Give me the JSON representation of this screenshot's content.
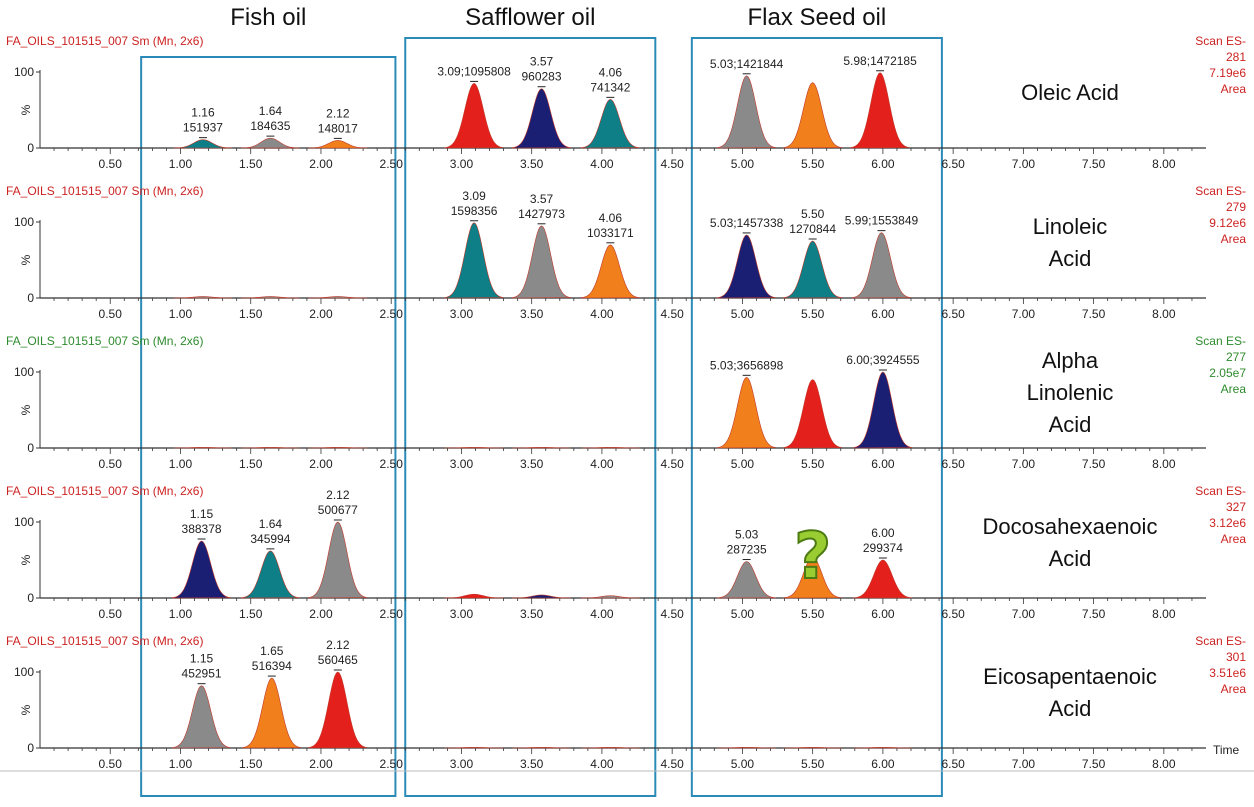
{
  "colors": {
    "red": "#e3201b",
    "navy": "#1b1f73",
    "teal": "#0e7f86",
    "gray": "#8a8a8a",
    "orange": "#f07f1c",
    "box": "#2b8bb8",
    "header_red": "#cc2222",
    "header_green": "#2e8b2e",
    "question_mark": "#9acd32"
  },
  "chart_data": {
    "type": "area",
    "oil_groups": [
      {
        "name": "Fish oil",
        "x_range": [
          0.72,
          2.53
        ]
      },
      {
        "name": "Safflower oil",
        "x_range": [
          2.6,
          4.38
        ]
      },
      {
        "name": "Flax Seed oil",
        "x_range": [
          4.64,
          6.42
        ]
      }
    ],
    "x_axis": {
      "label": "Time",
      "range": [
        0.0,
        8.3
      ],
      "ticks": [
        "0.50",
        "1.00",
        "1.50",
        "2.00",
        "2.50",
        "3.00",
        "3.50",
        "4.00",
        "4.50",
        "5.00",
        "5.50",
        "6.00",
        "6.50",
        "7.00",
        "7.50",
        "8.00"
      ]
    },
    "y_axis": {
      "label": "%",
      "range": [
        0,
        100
      ],
      "ticks": [
        "0",
        "100"
      ]
    },
    "panels": [
      {
        "header": "FA_OILS_101515_007 Sm (Mn, 2x6)",
        "header_color": "red",
        "compound": [
          "Oleic Acid"
        ],
        "scan": [
          "Scan ES-",
          "281",
          "7.19e6",
          "Area"
        ],
        "scan_color": "red",
        "peaks": [
          {
            "rt": 1.16,
            "height": 11,
            "color": "teal",
            "label": [
              "1.16",
              "151937"
            ]
          },
          {
            "rt": 1.64,
            "height": 13,
            "color": "gray",
            "label": [
              "1.64",
              "184635"
            ]
          },
          {
            "rt": 2.12,
            "height": 10,
            "color": "orange",
            "label": [
              "2.12",
              "148017"
            ]
          },
          {
            "rt": 3.09,
            "height": 85,
            "color": "red",
            "label": [
              "3.09;1095808"
            ]
          },
          {
            "rt": 3.57,
            "height": 78,
            "color": "navy",
            "label": [
              "3.57",
              "960283"
            ]
          },
          {
            "rt": 4.06,
            "height": 64,
            "color": "teal",
            "label": [
              "4.06",
              "741342"
            ]
          },
          {
            "rt": 5.03,
            "height": 95,
            "color": "gray",
            "label": [
              "5.03;1421844"
            ]
          },
          {
            "rt": 5.5,
            "height": 86,
            "color": "orange",
            "label": []
          },
          {
            "rt": 5.98,
            "height": 99,
            "color": "red",
            "label": [
              "5.98;1472185"
            ]
          }
        ]
      },
      {
        "header": "FA_OILS_101515_007 Sm (Mn, 2x6)",
        "header_color": "red",
        "compound": [
          "Linoleic",
          "Acid"
        ],
        "scan": [
          "Scan ES-",
          "279",
          "9.12e6",
          "Area"
        ],
        "scan_color": "red",
        "peaks": [
          {
            "rt": 1.16,
            "height": 2,
            "color": "gray",
            "label": []
          },
          {
            "rt": 1.64,
            "height": 2,
            "color": "gray",
            "label": []
          },
          {
            "rt": 2.12,
            "height": 2,
            "color": "gray",
            "label": []
          },
          {
            "rt": 3.09,
            "height": 99,
            "color": "teal",
            "label": [
              "3.09",
              "1598356"
            ]
          },
          {
            "rt": 3.57,
            "height": 95,
            "color": "gray",
            "label": [
              "3.57",
              "1427973"
            ]
          },
          {
            "rt": 4.06,
            "height": 70,
            "color": "orange",
            "label": [
              "4.06",
              "1033171"
            ]
          },
          {
            "rt": 5.03,
            "height": 83,
            "color": "navy",
            "label": [
              "5.03;1457338"
            ]
          },
          {
            "rt": 5.5,
            "height": 75,
            "color": "teal",
            "label": [
              "5.50",
              "1270844"
            ]
          },
          {
            "rt": 5.99,
            "height": 86,
            "color": "gray",
            "label": [
              "5.99;1553849"
            ]
          }
        ]
      },
      {
        "header": "FA_OILS_101515_007 Sm (Mn, 2x6)",
        "header_color": "green",
        "compound": [
          "Alpha",
          "Linolenic",
          "Acid"
        ],
        "scan": [
          "Scan ES-",
          "277",
          "2.05e7",
          "Area"
        ],
        "scan_color": "green",
        "peaks": [
          {
            "rt": 1.16,
            "height": 1,
            "color": "gray",
            "label": []
          },
          {
            "rt": 1.64,
            "height": 1,
            "color": "gray",
            "label": []
          },
          {
            "rt": 2.12,
            "height": 1,
            "color": "gray",
            "label": []
          },
          {
            "rt": 3.09,
            "height": 1,
            "color": "gray",
            "label": []
          },
          {
            "rt": 3.57,
            "height": 1,
            "color": "gray",
            "label": []
          },
          {
            "rt": 4.06,
            "height": 1,
            "color": "gray",
            "label": []
          },
          {
            "rt": 5.03,
            "height": 93,
            "color": "orange",
            "label": [
              "5.03;3656898"
            ]
          },
          {
            "rt": 5.5,
            "height": 90,
            "color": "red",
            "label": []
          },
          {
            "rt": 6.0,
            "height": 100,
            "color": "navy",
            "label": [
              "6.00;3924555"
            ]
          }
        ]
      },
      {
        "header": "FA_OILS_101515_007 Sm (Mn, 2x6)",
        "header_color": "red",
        "compound": [
          "Docosahexaenoic",
          "Acid"
        ],
        "scan": [
          "Scan ES-",
          "327",
          "3.12e6",
          "Area"
        ],
        "scan_color": "red",
        "annotation": "?",
        "peaks": [
          {
            "rt": 1.15,
            "height": 75,
            "color": "navy",
            "label": [
              "1.15",
              "388378"
            ]
          },
          {
            "rt": 1.64,
            "height": 62,
            "color": "teal",
            "label": [
              "1.64",
              "345994"
            ]
          },
          {
            "rt": 2.12,
            "height": 100,
            "color": "gray",
            "label": [
              "2.12",
              "500677"
            ]
          },
          {
            "rt": 3.09,
            "height": 5,
            "color": "red",
            "label": []
          },
          {
            "rt": 3.57,
            "height": 4,
            "color": "navy",
            "label": []
          },
          {
            "rt": 4.06,
            "height": 3,
            "color": "gray",
            "label": []
          },
          {
            "rt": 5.03,
            "height": 48,
            "color": "gray",
            "label": [
              "5.03",
              "287235"
            ]
          },
          {
            "rt": 5.5,
            "height": 54,
            "color": "orange",
            "label": []
          },
          {
            "rt": 6.0,
            "height": 50,
            "color": "red",
            "label": [
              "6.00",
              "299374"
            ]
          }
        ]
      },
      {
        "header": "FA_OILS_101515_007 Sm (Mn, 2x6)",
        "header_color": "red",
        "compound": [
          "Eicosapentaenoic",
          "Acid"
        ],
        "scan": [
          "Scan ES-",
          "301",
          "3.51e6",
          "Area"
        ],
        "scan_color": "red",
        "peaks": [
          {
            "rt": 1.15,
            "height": 82,
            "color": "gray",
            "label": [
              "1.15",
              "452951"
            ]
          },
          {
            "rt": 1.65,
            "height": 92,
            "color": "orange",
            "label": [
              "1.65",
              "516394"
            ]
          },
          {
            "rt": 2.12,
            "height": 100,
            "color": "red",
            "label": [
              "2.12",
              "560465"
            ]
          },
          {
            "rt": 3.09,
            "height": 1,
            "color": "gray",
            "label": []
          },
          {
            "rt": 3.57,
            "height": 1,
            "color": "gray",
            "label": []
          },
          {
            "rt": 4.06,
            "height": 1,
            "color": "gray",
            "label": []
          },
          {
            "rt": 5.03,
            "height": 1,
            "color": "gray",
            "label": []
          },
          {
            "rt": 5.5,
            "height": 1,
            "color": "gray",
            "label": []
          },
          {
            "rt": 6.0,
            "height": 1,
            "color": "gray",
            "label": []
          }
        ]
      }
    ]
  }
}
